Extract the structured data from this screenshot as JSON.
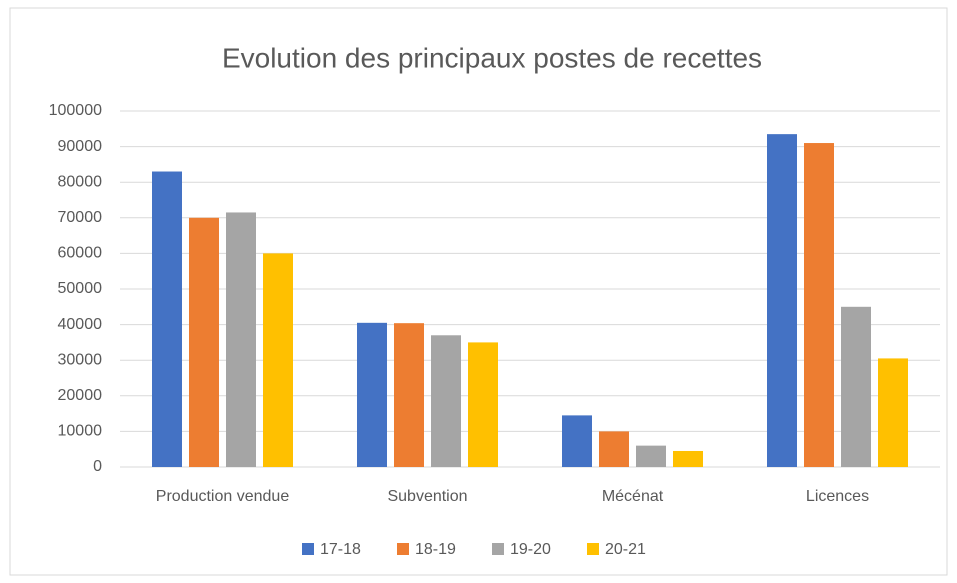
{
  "chart_data": {
    "type": "bar",
    "title": "Evolution des principaux  postes de recettes",
    "categories": [
      "Production vendue",
      "Subvention",
      "Mécénat",
      "Licences"
    ],
    "series": [
      {
        "name": "17-18",
        "color": "#4472c4",
        "values": [
          83000,
          40500,
          14500,
          93500
        ]
      },
      {
        "name": "18-19",
        "color": "#ed7d31",
        "values": [
          70000,
          40400,
          10000,
          91000
        ]
      },
      {
        "name": "19-20",
        "color": "#a5a5a5",
        "values": [
          71500,
          37000,
          6000,
          45000
        ]
      },
      {
        "name": "20-21",
        "color": "#ffc000",
        "values": [
          60000,
          35000,
          4500,
          30500
        ]
      }
    ],
    "ylim": [
      0,
      100000
    ],
    "yticks": [
      0,
      10000,
      20000,
      30000,
      40000,
      50000,
      60000,
      70000,
      80000,
      90000,
      100000
    ],
    "grid": true,
    "legend": "bottom"
  }
}
